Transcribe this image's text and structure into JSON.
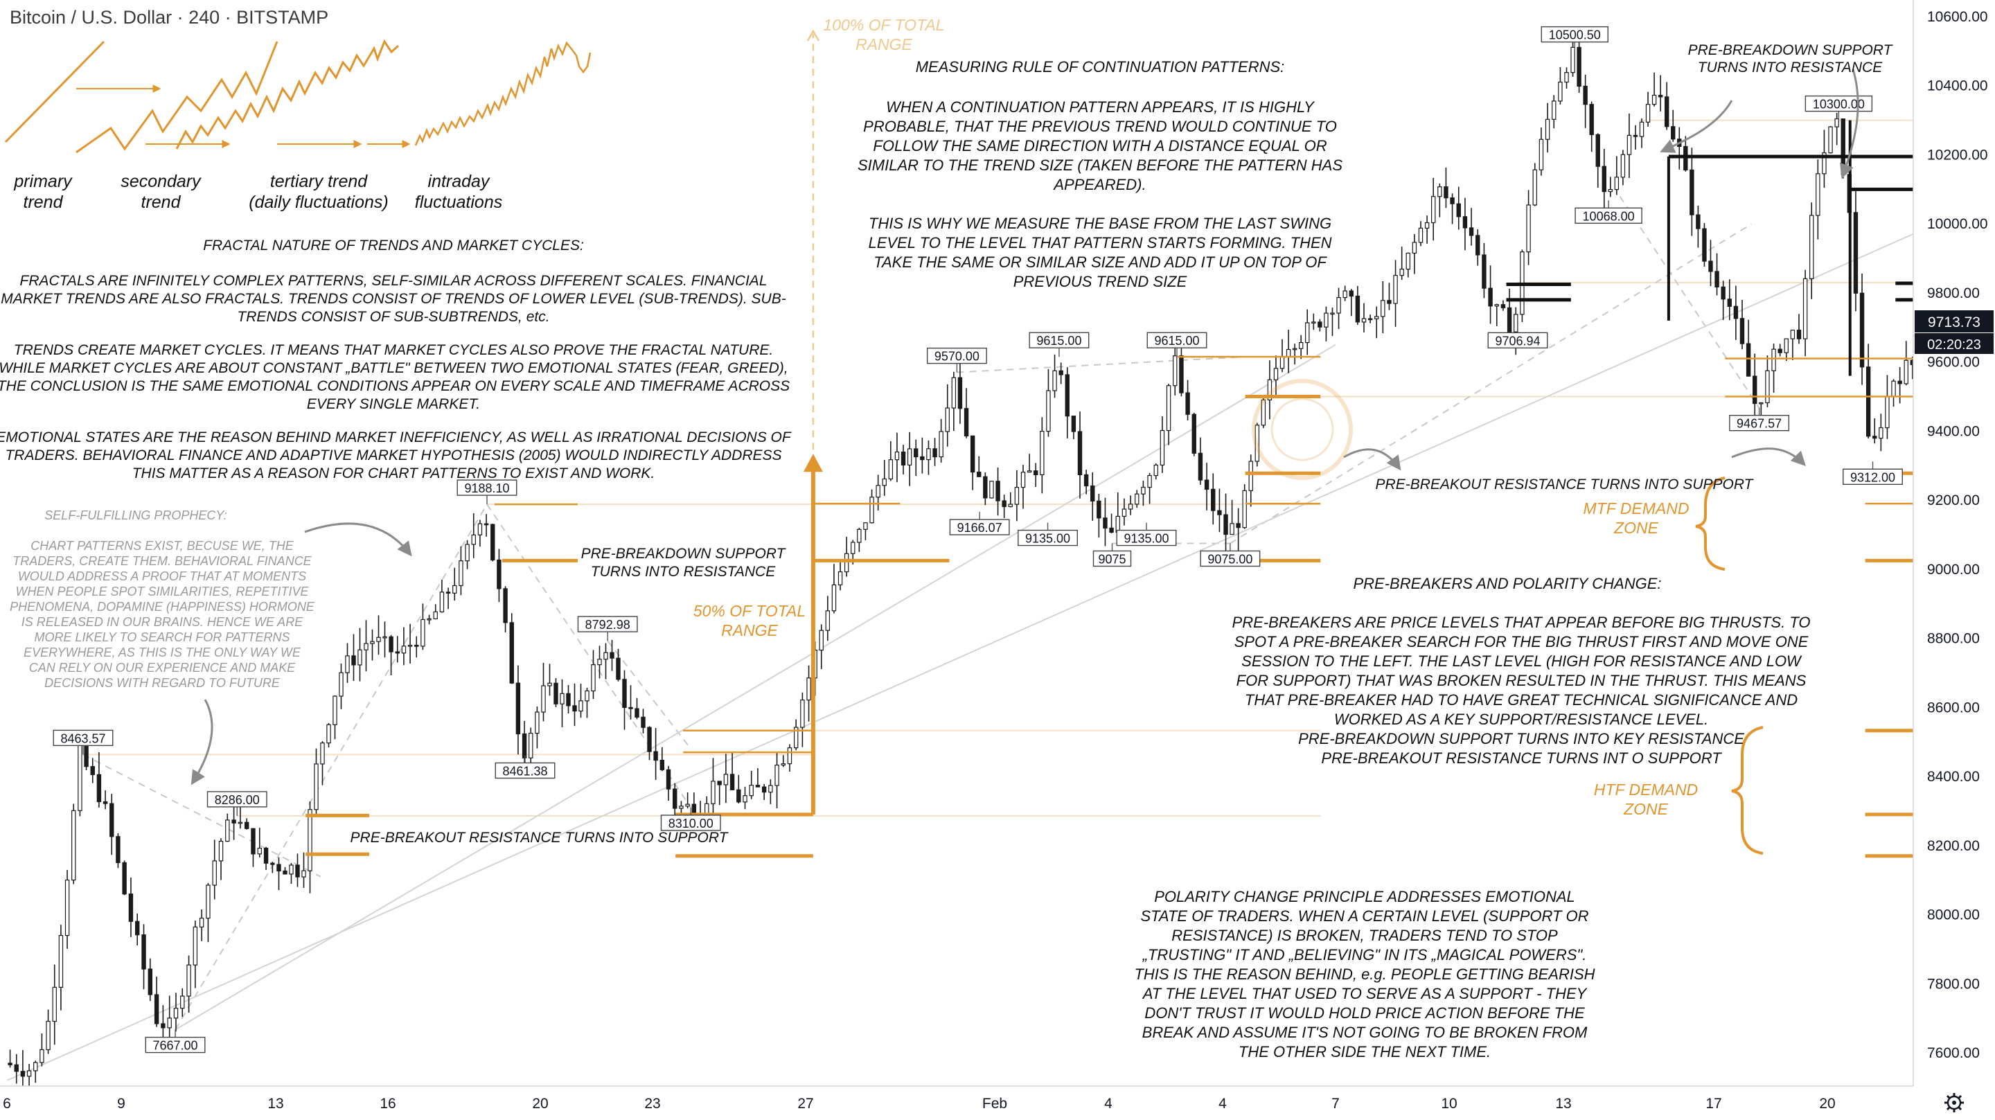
{
  "header": {
    "symbol_title": "Bitcoin / U.S. Dollar · 240 · BITSTAMP"
  },
  "price_axis": {
    "ticks": [
      "10600.00",
      "10400.00",
      "10200.00",
      "10000.00",
      "9800.00",
      "9600.00",
      "9400.00",
      "9200.00",
      "9000.00",
      "8800.00",
      "8600.00",
      "8400.00",
      "8200.00",
      "8000.00",
      "7800.00",
      "7600.00"
    ],
    "last_price": "9713.73",
    "countdown": "02:20:23",
    "last_price_color": "#131722"
  },
  "time_axis": {
    "ticks": [
      "6",
      "9",
      "13",
      "16",
      "20",
      "23",
      "27",
      "Feb",
      "4",
      "4",
      "7",
      "10",
      "13",
      "17",
      "20"
    ],
    "settings_icon": "gear-icon"
  },
  "colors": {
    "accent_orange": "#e0952f",
    "candle": "#1b1b1b",
    "annotation_text": "#111111",
    "muted_text": "#9a9a9a",
    "gray_line": "#c8c8c8"
  },
  "fractal_sketch": {
    "labels": [
      {
        "l1": "primary",
        "l2": "trend"
      },
      {
        "l1": "secondary",
        "l2": "trend"
      },
      {
        "l1": "tertiary trend",
        "l2": "(daily fluctuations)"
      },
      {
        "l1": "intraday",
        "l2": "fluctuations"
      }
    ]
  },
  "annotations": {
    "fractal_title": "FRACTAL NATURE OF TRENDS AND MARKET CYCLES:",
    "fractal_p1": [
      "FRACTALS  ARE INFINITELY COMPLEX PATTERNS, SELF-SIMILAR ACROSS DIFFERENT SCALES.  FINANCIAL",
      "MARKET TRENDS ARE ALSO FRACTALS.  TRENDS CONSIST OF TRENDS OF LOWER LEVEL (SUB-TRENDS). SUB-",
      "TRENDS CONSIST OF SUB-SUBTRENDS, etc."
    ],
    "fractal_p2": [
      "TRENDS CREATE MARKET CYCLES. IT MEANS THAT MARKET CYCLES ALSO PROVE THE FRACTAL NATURE.",
      "WHILE MARKET CYCLES ARE ABOUT CONSTANT „BATTLE\" BETWEEN TWO EMOTIONAL STATES (FEAR, GREED),",
      "THE CONCLUSION IS THE SAME EMOTIONAL CONDITIONS APPEAR ON EVERY SCALE AND TIMEFRAME ACROSS",
      "EVERY SINGLE MARKET."
    ],
    "fractal_p3": [
      "EMOTIONAL STATES ARE THE REASON BEHIND MARKET INEFFICIENCY, AS WELL AS IRRATIONAL DECISIONS OF",
      "TRADERS. BEHAVIORAL FINANCE AND ADAPTIVE MARKET HYPOTHESIS (2005) WOULD INDIRECTLY ADDRESS",
      "THIS MATTER AS A REASON FOR CHART PATTERNS TO EXIST AND WORK."
    ],
    "prophecy_title": "SELF-FULFILLING PROPHECY:",
    "prophecy_body": [
      "CHART PATTERNS EXIST, BECUSE WE, THE",
      "TRADERS, CREATE THEM. BEHAVIORAL FINANCE",
      "WOULD ADDRESS A PROOF THAT AT MOMENTS",
      "WHEN PEOPLE SPOT SIMILARITIES, REPETITIVE",
      "PHENOMENA, DOPAMINE (HAPPINESS) HORMONE",
      "IS RELEASED IN OUR BRAINS. HENCE WE ARE",
      "MORE LIKELY TO SEARCH FOR PATTERNS",
      "EVERYWHERE, AS THIS IS THE ONLY WAY WE",
      "CAN RELY ON OUR EXPERIENCE AND MAKE",
      "DECISIONS WITH REGARD TO FUTURE"
    ],
    "measuring_title": "MEASURING RULE OF CONTINUATION PATTERNS:",
    "measuring_p1": [
      "WHEN A CONTINUATION PATTERN APPEARS, IT IS HIGHLY",
      "PROBABLE, THAT THE PREVIOUS TREND WOULD CONTINUE TO",
      "FOLLOW THE SAME DIRECTION WITH A DISTANCE EQUAL OR",
      "SIMILAR TO THE TREND SIZE (TAKEN BEFORE THE PATTERN HAS",
      "APPEARED)."
    ],
    "measuring_p2": [
      "THIS IS WHY WE MEASURE THE BASE FROM THE LAST SWING",
      "LEVEL TO THE LEVEL THAT PATTERN STARTS FORMING. THEN",
      "TAKE THE SAME OR SIMILAR SIZE AND ADD IT UP ON TOP OF",
      "PREVIOUS TREND SIZE"
    ],
    "total_range_100": [
      "100% OF TOTAL",
      "RANGE"
    ],
    "total_range_50": [
      "50% OF TOTAL",
      "RANGE"
    ],
    "pre_breakdown_left": [
      "PRE-BREAKDOWN SUPPORT",
      "TURNS INTO RESISTANCE"
    ],
    "pre_breakdown_right": [
      "PRE-BREAKDOWN SUPPORT",
      "TURNS INTO RESISTANCE"
    ],
    "pre_breakout_left": "PRE-BREAKOUT RESISTANCE TURNS INTO SUPPORT",
    "pre_breakout_right": "PRE-BREAKOUT RESISTANCE TURNS INTO SUPPORT",
    "mtf_zone": [
      "MTF DEMAND",
      "ZONE"
    ],
    "htf_zone": [
      "HTF DEMAND",
      "ZONE"
    ],
    "prebreakers_title": "PRE-BREAKERS AND POLARITY CHANGE:",
    "prebreakers_body": [
      "PRE-BREAKERS ARE PRICE LEVELS THAT APPEAR BEFORE BIG THRUSTS. TO",
      "SPOT A PRE-BREAKER SEARCH FOR THE BIG THRUST FIRST AND MOVE ONE",
      "SESSION TO THE LEFT. THE LAST LEVEL (HIGH FOR RESISTANCE AND LOW",
      "FOR SUPPORT) THAT WAS BROKEN RESULTED IN THE THRUST. THIS MEANS",
      "THAT PRE-BREAKER HAD TO HAVE GREAT TECHNICAL SIGNIFICANCE AND",
      "WORKED AS A KEY SUPPORT/RESISTANCE LEVEL.",
      "PRE-BREAKDOWN SUPPORT TURNS INTO KEY RESISTANCE",
      "PRE-BREAKOUT RESISTANCE TURNS INT O SUPPORT"
    ],
    "polarity_body": [
      "POLARITY CHANGE PRINCIPLE ADDRESSES EMOTIONAL",
      "STATE OF TRADERS. WHEN A CERTAIN LEVEL (SUPPORT OR",
      "RESISTANCE) IS BROKEN, TRADERS TEND TO STOP",
      "„TRUSTING\" IT AND „BELIEVING\" IN ITS „MAGICAL POWERS\".",
      "THIS IS THE REASON BEHIND, e.g. PEOPLE GETTING BEARISH",
      "AT THE LEVEL THAT USED TO SERVE AS A SUPPORT - THEY",
      "DON'T TRUST IT WOULD HOLD PRICE ACTION BEFORE THE",
      "BREAK AND ASSUME IT'S NOT GOING TO BE BROKEN FROM",
      "THE OTHER SIDE THE NEXT TIME."
    ]
  },
  "chart_data": {
    "type": "candlestick",
    "title": "Bitcoin / U.S. Dollar · 240 · BITSTAMP",
    "xlabel": "",
    "ylabel": "",
    "ylim": [
      7520,
      10680
    ],
    "x_range_days": [
      6,
      58
    ],
    "x_ticks": [
      {
        "label": "6",
        "day": 6
      },
      {
        "label": "9",
        "day": 9
      },
      {
        "label": "13",
        "day": 13
      },
      {
        "label": "16",
        "day": 16
      },
      {
        "label": "20",
        "day": 20
      },
      {
        "label": "23",
        "day": 23
      },
      {
        "label": "27",
        "day": 27
      },
      {
        "label": "Feb",
        "day": 32
      },
      {
        "label": "4",
        "day": 35
      },
      {
        "label": "4",
        "day": 38
      },
      {
        "label": "7",
        "day": 41
      },
      {
        "label": "10",
        "day": 44
      },
      {
        "label": "13",
        "day": 47
      },
      {
        "label": "17",
        "day": 51
      },
      {
        "label": "20",
        "day": 54
      }
    ],
    "price_path": [
      [
        6.0,
        7570
      ],
      [
        6.8,
        7550
      ],
      [
        7.2,
        7700
      ],
      [
        7.6,
        8050
      ],
      [
        8.0,
        8463
      ],
      [
        8.6,
        8330
      ],
      [
        9.3,
        8000
      ],
      [
        10.0,
        7700
      ],
      [
        10.4,
        7667
      ],
      [
        11.0,
        7950
      ],
      [
        11.6,
        8200
      ],
      [
        12.0,
        8286
      ],
      [
        12.8,
        8150
      ],
      [
        13.3,
        8140
      ],
      [
        13.8,
        8130
      ],
      [
        14.2,
        8450
      ],
      [
        14.8,
        8700
      ],
      [
        15.6,
        8800
      ],
      [
        16.4,
        8750
      ],
      [
        17.2,
        8850
      ],
      [
        18.0,
        9000
      ],
      [
        18.6,
        9188
      ],
      [
        19.2,
        8800
      ],
      [
        19.6,
        8461
      ],
      [
        20.2,
        8650
      ],
      [
        21.2,
        8600
      ],
      [
        21.8,
        8792
      ],
      [
        22.4,
        8600
      ],
      [
        23.2,
        8450
      ],
      [
        23.7,
        8310
      ],
      [
        24.3,
        8310
      ],
      [
        24.8,
        8400
      ],
      [
        25.4,
        8330
      ],
      [
        26.0,
        8370
      ],
      [
        26.6,
        8480
      ],
      [
        27.2,
        8700
      ],
      [
        27.8,
        8950
      ],
      [
        28.5,
        9100
      ],
      [
        29.2,
        9300
      ],
      [
        30.5,
        9350
      ],
      [
        31.0,
        9570
      ],
      [
        31.6,
        9250
      ],
      [
        32.4,
        9200
      ],
      [
        33.2,
        9300
      ],
      [
        33.7,
        9615
      ],
      [
        34.4,
        9250
      ],
      [
        35.1,
        9080
      ],
      [
        35.6,
        9200
      ],
      [
        36.3,
        9300
      ],
      [
        36.8,
        9615
      ],
      [
        37.5,
        9250
      ],
      [
        38.2,
        9100
      ],
      [
        38.6,
        9160
      ],
      [
        39.1,
        9450
      ],
      [
        39.7,
        9650
      ],
      [
        40.5,
        9700
      ],
      [
        41.2,
        9800
      ],
      [
        42.0,
        9700
      ],
      [
        42.8,
        9850
      ],
      [
        43.8,
        10100
      ],
      [
        44.6,
        10000
      ],
      [
        45.2,
        9750
      ],
      [
        45.8,
        9707
      ],
      [
        46.2,
        10100
      ],
      [
        46.9,
        10400
      ],
      [
        47.3,
        10500
      ],
      [
        47.9,
        10200
      ],
      [
        48.2,
        10068
      ],
      [
        48.8,
        10250
      ],
      [
        49.6,
        10380
      ],
      [
        50.2,
        10200
      ],
      [
        50.8,
        9900
      ],
      [
        51.4,
        9800
      ],
      [
        51.8,
        9650
      ],
      [
        52.2,
        9467
      ],
      [
        52.8,
        9650
      ],
      [
        53.4,
        9700
      ],
      [
        53.8,
        10150
      ],
      [
        54.3,
        10300
      ],
      [
        54.6,
        10100
      ],
      [
        55.0,
        9600
      ],
      [
        55.2,
        9312
      ],
      [
        55.8,
        9550
      ],
      [
        56.4,
        9600
      ],
      [
        57.0,
        9700
      ],
      [
        57.6,
        9713.73
      ]
    ],
    "price_labels": [
      {
        "text": "8463.57",
        "day": 8.0,
        "price": 8463.57,
        "pos": "above"
      },
      {
        "text": "7667.00",
        "day": 10.4,
        "price": 7667,
        "pos": "below"
      },
      {
        "text": "8286.00",
        "day": 12.0,
        "price": 8286,
        "pos": "above"
      },
      {
        "text": "9188.10",
        "day": 18.6,
        "price": 9188.1,
        "pos": "above"
      },
      {
        "text": "8461.38",
        "day": 19.6,
        "price": 8461.38,
        "pos": "below"
      },
      {
        "text": "8792.98",
        "day": 21.8,
        "price": 8792.98,
        "pos": "above"
      },
      {
        "text": "8310.00",
        "day": 24.0,
        "price": 8310,
        "pos": "below"
      },
      {
        "text": "9570.00",
        "day": 31.0,
        "price": 9570,
        "pos": "above"
      },
      {
        "text": "9166.07",
        "day": 31.6,
        "price": 9166.07,
        "pos": "below"
      },
      {
        "text": "9615.00",
        "day": 33.7,
        "price": 9615,
        "pos": "above"
      },
      {
        "text": "9135.00",
        "day": 33.4,
        "price": 9135,
        "pos": "below"
      },
      {
        "text": "9075",
        "day": 35.1,
        "price": 9075,
        "pos": "below"
      },
      {
        "text": "9135.00",
        "day": 36.0,
        "price": 9135,
        "pos": "below"
      },
      {
        "text": "9615.00",
        "day": 36.8,
        "price": 9615,
        "pos": "above"
      },
      {
        "text": "9075.00",
        "day": 38.2,
        "price": 9075,
        "pos": "below"
      },
      {
        "text": "9706.94",
        "day": 45.8,
        "price": 9706.94,
        "pos": "below"
      },
      {
        "text": "10500.50",
        "day": 47.3,
        "price": 10500.5,
        "pos": "above"
      },
      {
        "text": "10068.00",
        "day": 48.2,
        "price": 10068,
        "pos": "below"
      },
      {
        "text": "9467.57",
        "day": 52.2,
        "price": 9467.57,
        "pos": "below"
      },
      {
        "text": "10300.00",
        "day": 54.3,
        "price": 10300,
        "pos": "above"
      },
      {
        "text": "9312.00",
        "day": 55.2,
        "price": 9312,
        "pos": "below"
      }
    ],
    "orange_levels": [
      {
        "price": 8287,
        "from": 13.8,
        "to": 15.5,
        "style": "bold"
      },
      {
        "price": 8175,
        "from": 13.8,
        "to": 15.5,
        "style": "bold"
      },
      {
        "price": 9188,
        "from": 18.8,
        "to": 21.0,
        "style": "thin"
      },
      {
        "price": 9025,
        "from": 19.0,
        "to": 21.0,
        "style": "bold"
      },
      {
        "price": 8533,
        "from": 23.8,
        "to": 27.2,
        "style": "thin"
      },
      {
        "price": 8470,
        "from": 23.8,
        "to": 27.2,
        "style": "thin"
      },
      {
        "price": 8290,
        "from": 23.6,
        "to": 27.2,
        "style": "bold"
      },
      {
        "price": 8170,
        "from": 23.6,
        "to": 27.2,
        "style": "bold"
      },
      {
        "price": 9025,
        "from": 27.2,
        "to": 30.8,
        "style": "bold"
      },
      {
        "price": 9190,
        "from": 27.2,
        "to": 29.5,
        "style": "thin"
      },
      {
        "price": 9615,
        "from": 36.8,
        "to": 40.6,
        "style": "thin"
      },
      {
        "price": 9500,
        "from": 38.6,
        "to": 40.6,
        "style": "bold"
      },
      {
        "price": 9278,
        "from": 38.6,
        "to": 40.6,
        "style": "bold"
      },
      {
        "price": 9190,
        "from": 38.6,
        "to": 40.6,
        "style": "thin"
      },
      {
        "price": 9025,
        "from": 38.6,
        "to": 40.6,
        "style": "bold"
      },
      {
        "price": 9610,
        "from": 51.3,
        "to": 57.9,
        "style": "thin"
      },
      {
        "price": 9500,
        "from": 51.3,
        "to": 57.9,
        "style": "thin"
      },
      {
        "price": 9278,
        "from": 55.0,
        "to": 57.9,
        "style": "bold"
      },
      {
        "price": 9190,
        "from": 55.0,
        "to": 57.9,
        "style": "thin"
      },
      {
        "price": 9025,
        "from": 55.0,
        "to": 57.9,
        "style": "bold"
      },
      {
        "price": 8533,
        "from": 55.0,
        "to": 57.9,
        "style": "bold"
      },
      {
        "price": 8290,
        "from": 55.0,
        "to": 57.9,
        "style": "bold"
      },
      {
        "price": 8170,
        "from": 55.0,
        "to": 57.9,
        "style": "bold"
      }
    ],
    "black_levels": [
      {
        "price": 9825,
        "from": 45.5,
        "to": 47.2
      },
      {
        "price": 9780,
        "from": 45.5,
        "to": 47.2
      },
      {
        "price": 10195,
        "from": 49.8,
        "to": 57.9
      },
      {
        "price": 10100,
        "from": 54.6,
        "to": 57.9
      },
      {
        "price": 9828,
        "from": 55.8,
        "to": 57.9
      },
      {
        "price": 9780,
        "from": 55.8,
        "to": 57.9
      }
    ],
    "projection": {
      "day": 27.2,
      "from": 8290,
      "to": 9290,
      "target": 10550
    },
    "legend": "none",
    "grid": false
  }
}
